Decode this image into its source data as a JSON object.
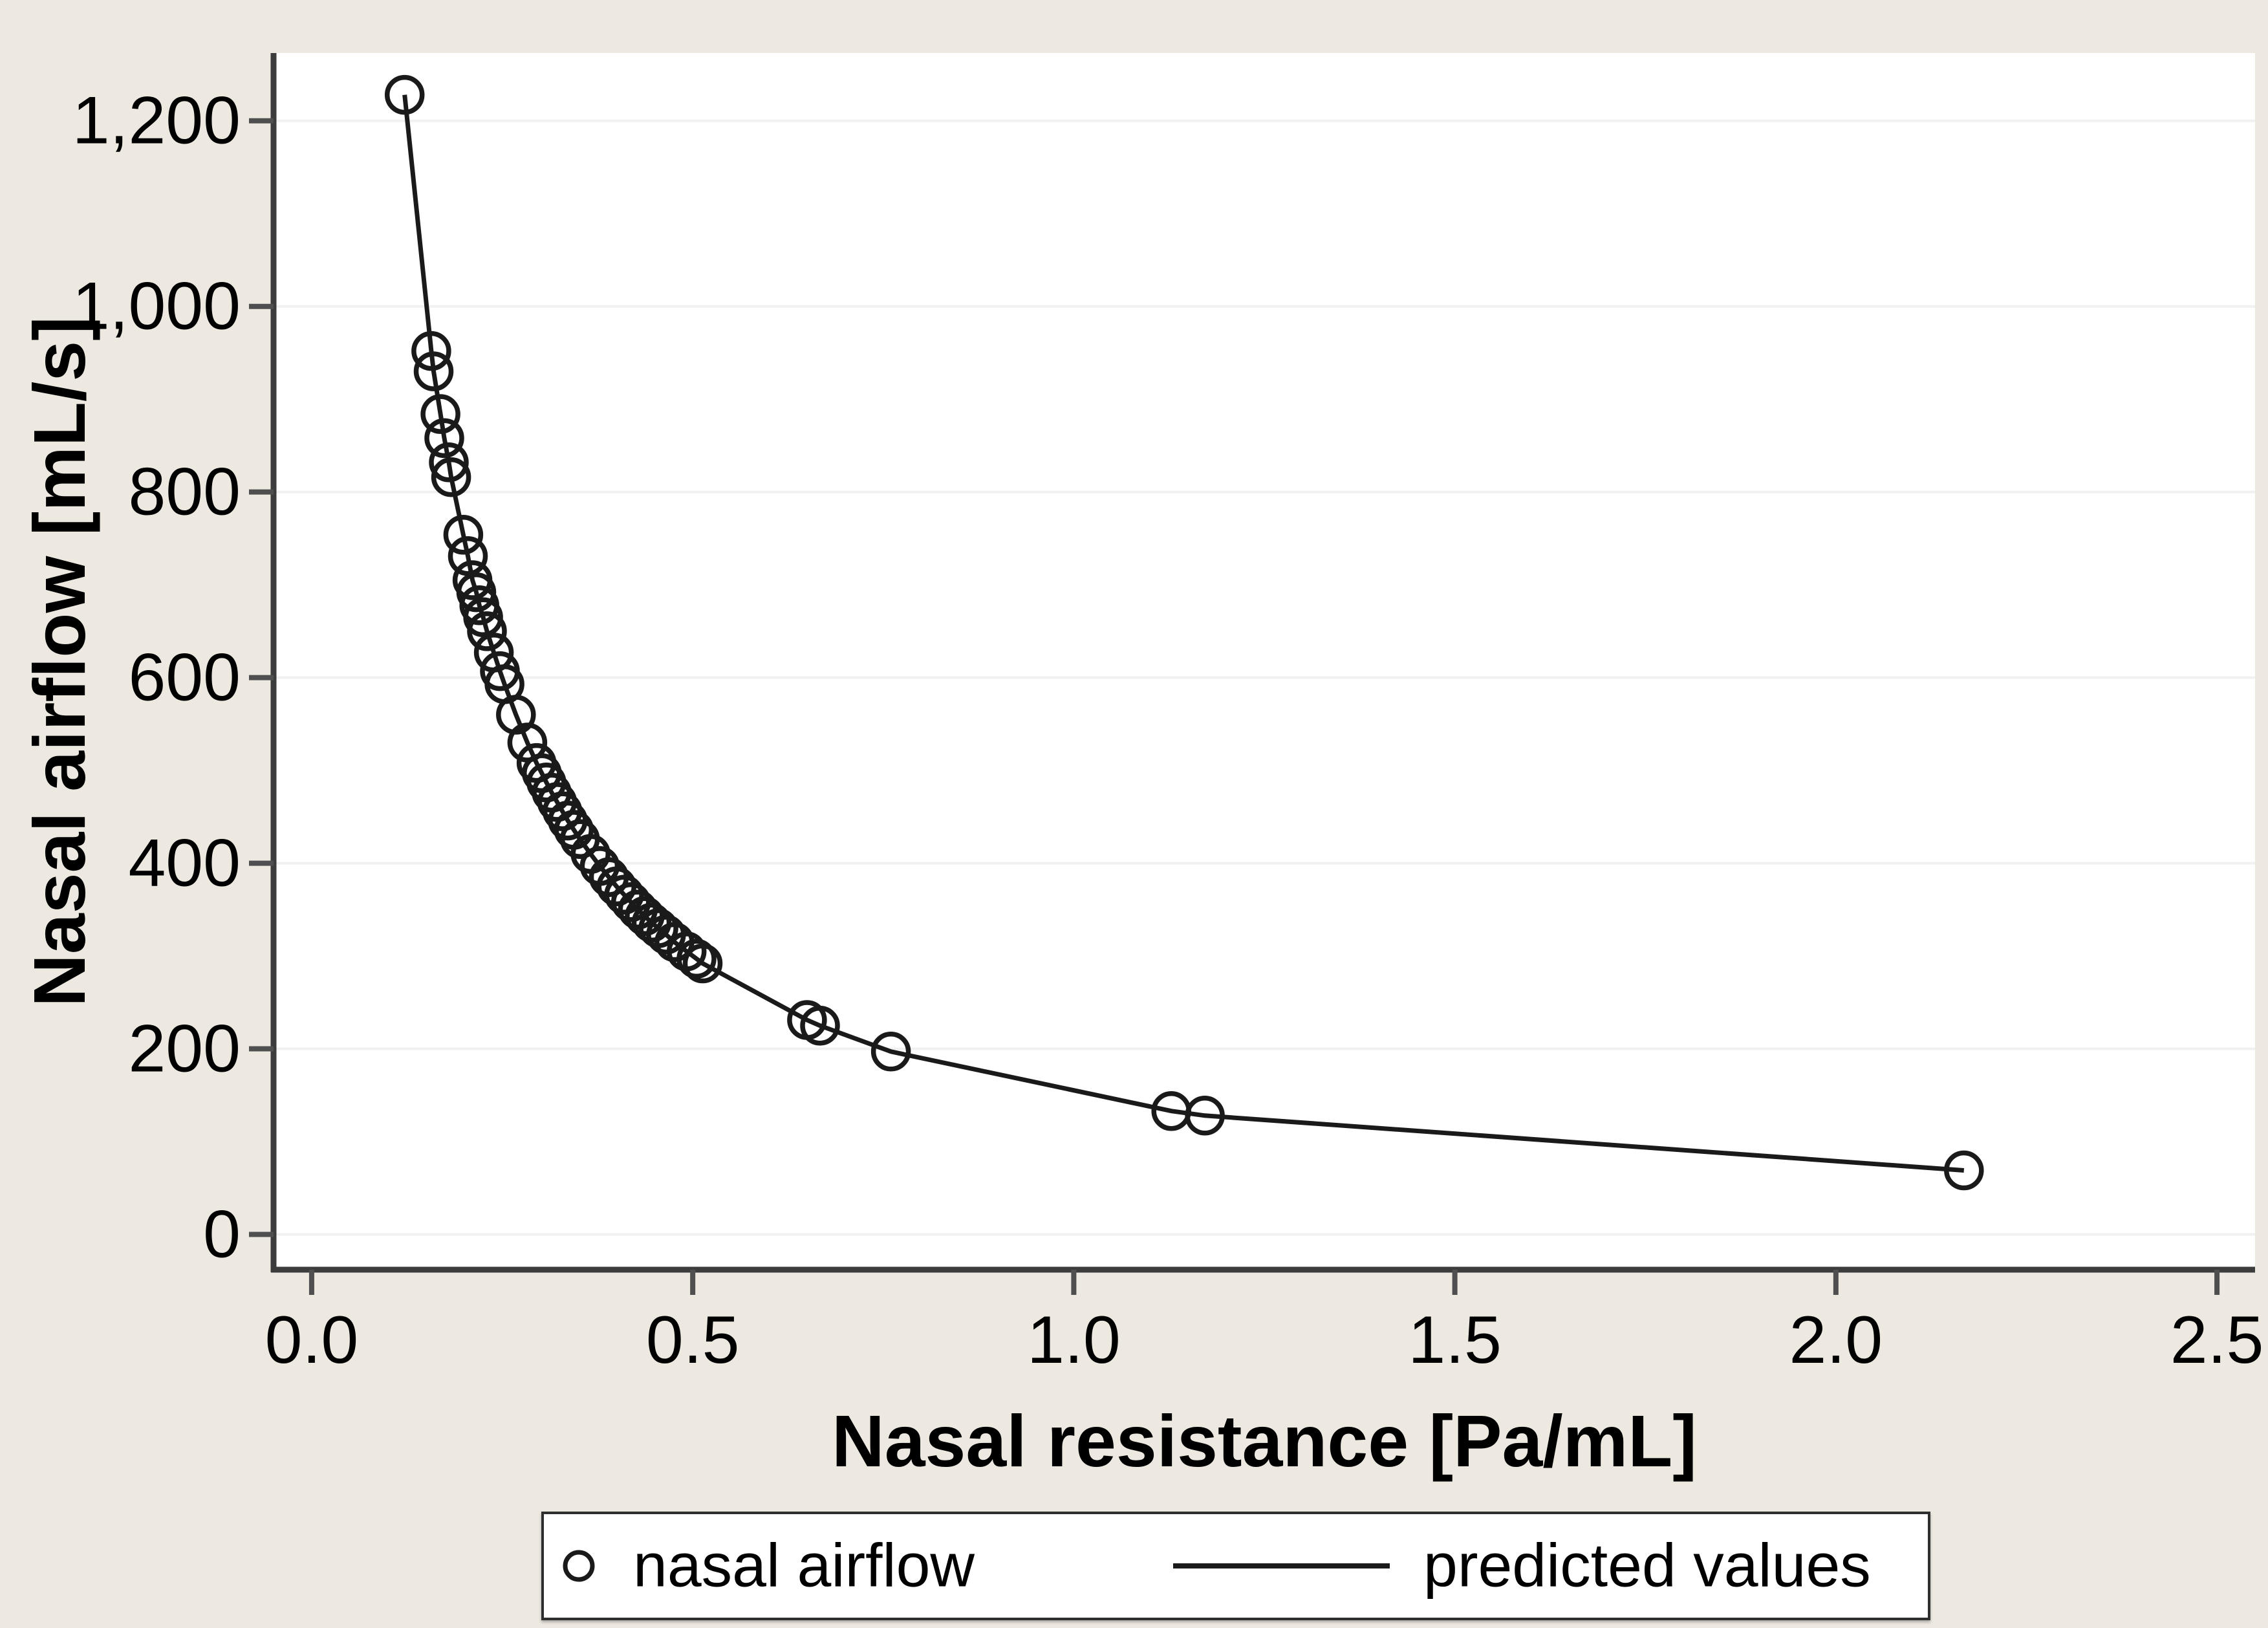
{
  "figure": {
    "background_color": "#EDE9E1",
    "plot_background": "#FFFFFF",
    "grid_color": "#F1F1F1",
    "axis_color": "#3C3C3C",
    "tick_color": "#4F4F4F",
    "series_color": "#1A1A1A",
    "text_color": "#000000"
  },
  "chart_data": {
    "type": "scatter",
    "title": "",
    "xlabel": "Nasal resistance [Pa/mL]",
    "ylabel": "Nasal airflow [mL/s]",
    "grid": "horizontal",
    "legend_position": "bottom",
    "xlim": [
      -0.05,
      2.55
    ],
    "ylim": [
      -38,
      1273
    ],
    "x_ticks": {
      "values": [
        0.0,
        0.5,
        1.0,
        1.5,
        2.0,
        2.5
      ],
      "labels": [
        "0.0",
        "0.5",
        "1.0",
        "1.5",
        "2.0",
        "2.5"
      ]
    },
    "y_ticks": {
      "values": [
        0,
        200,
        400,
        600,
        800,
        1000,
        1200
      ],
      "labels": [
        "0",
        "200",
        "400",
        "600",
        "800",
        "1,000",
        "1,200"
      ]
    },
    "legend": [
      {
        "label": "nasal airflow",
        "marker": "open-circle"
      },
      {
        "label": "predicted values",
        "marker": "solid-line"
      }
    ],
    "series_note": "predicted values line connects the same fitted points",
    "points": [
      [
        0.122,
        1228
      ],
      [
        0.157,
        952
      ],
      [
        0.16,
        930
      ],
      [
        0.169,
        884
      ],
      [
        0.174,
        858
      ],
      [
        0.18,
        832
      ],
      [
        0.183,
        816
      ],
      [
        0.199,
        754
      ],
      [
        0.205,
        731
      ],
      [
        0.211,
        705
      ],
      [
        0.216,
        692
      ],
      [
        0.22,
        678
      ],
      [
        0.225,
        665
      ],
      [
        0.23,
        650
      ],
      [
        0.239,
        627
      ],
      [
        0.247,
        607
      ],
      [
        0.253,
        593
      ],
      [
        0.268,
        560
      ],
      [
        0.283,
        530
      ],
      [
        0.295,
        508
      ],
      [
        0.302,
        497
      ],
      [
        0.308,
        487
      ],
      [
        0.315,
        476
      ],
      [
        0.322,
        466
      ],
      [
        0.329,
        456
      ],
      [
        0.336,
        446
      ],
      [
        0.344,
        436
      ],
      [
        0.352,
        426
      ],
      [
        0.366,
        410
      ],
      [
        0.378,
        397
      ],
      [
        0.39,
        385
      ],
      [
        0.4,
        375
      ],
      [
        0.41,
        366
      ],
      [
        0.419,
        358
      ],
      [
        0.428,
        350
      ],
      [
        0.437,
        343
      ],
      [
        0.446,
        336
      ],
      [
        0.455,
        330
      ],
      [
        0.465,
        323
      ],
      [
        0.476,
        315
      ],
      [
        0.492,
        305
      ],
      [
        0.505,
        297
      ],
      [
        0.513,
        292
      ],
      [
        0.65,
        231
      ],
      [
        0.667,
        225
      ],
      [
        0.76,
        197
      ],
      [
        1.128,
        133
      ],
      [
        1.172,
        128
      ],
      [
        2.168,
        69
      ]
    ]
  }
}
